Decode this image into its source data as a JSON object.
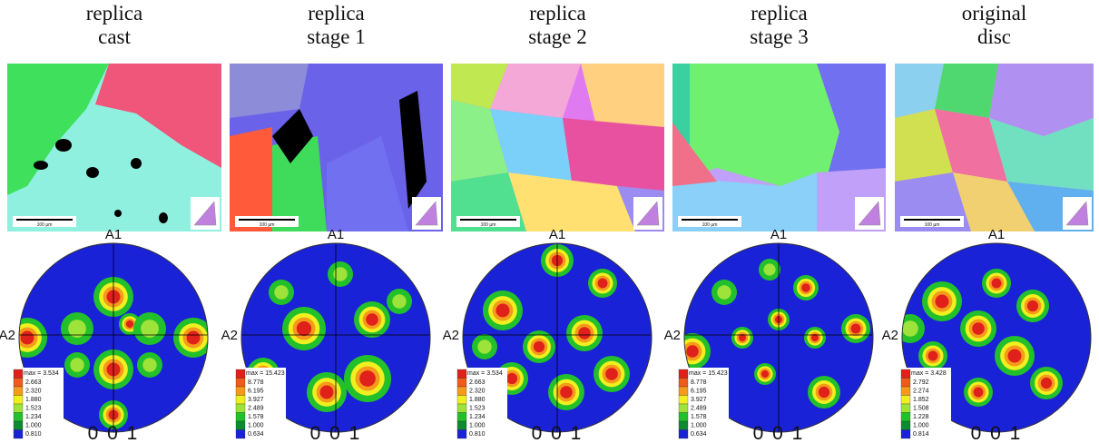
{
  "panels": [
    {
      "title": [
        "replica",
        "cast"
      ],
      "scale_bar": "100 µm",
      "pole_figure": {
        "top_label": "A1",
        "left_label": "A2",
        "legend_max": "max = 3.534",
        "legend_levels": [
          "2.663",
          "2.320",
          "1.880",
          "1.523",
          "1.234",
          "1.000",
          "0.810"
        ],
        "plane": "0 0 1"
      }
    },
    {
      "title": [
        "replica",
        "stage 1"
      ],
      "scale_bar": "100 µm",
      "pole_figure": {
        "top_label": "A1",
        "left_label": "A2",
        "legend_max": "max = 15.423",
        "legend_levels": [
          "8.778",
          "6.195",
          "3.927",
          "2.489",
          "1.578",
          "1.000",
          "0.634"
        ],
        "plane": "0 0 1"
      }
    },
    {
      "title": [
        "replica",
        "stage 2"
      ],
      "scale_bar": "100 µm",
      "pole_figure": {
        "top_label": "A1",
        "left_label": "A2",
        "legend_max": "max = 3.534",
        "legend_levels": [
          "2.663",
          "2.320",
          "1.880",
          "1.523",
          "1.234",
          "1.000",
          "0.810"
        ],
        "plane": "0 0 1"
      }
    },
    {
      "title": [
        "replica",
        "stage 3"
      ],
      "scale_bar": "100 µm",
      "pole_figure": {
        "top_label": "A1",
        "left_label": "A2",
        "legend_max": "max = 15.423",
        "legend_levels": [
          "8.778",
          "6.195",
          "3.927",
          "2.489",
          "1.578",
          "1.000",
          "0.634"
        ],
        "plane": "0 0 1"
      }
    },
    {
      "title": [
        "original",
        "disc"
      ],
      "scale_bar": "100 µm",
      "pole_figure": {
        "top_label": "A1",
        "left_label": "A2",
        "legend_max": "max = 3.428",
        "legend_levels": [
          "2.792",
          "2.274",
          "1.852",
          "1.508",
          "1.228",
          "1.000",
          "0.814"
        ],
        "plane": "0 0 1"
      }
    }
  ]
}
